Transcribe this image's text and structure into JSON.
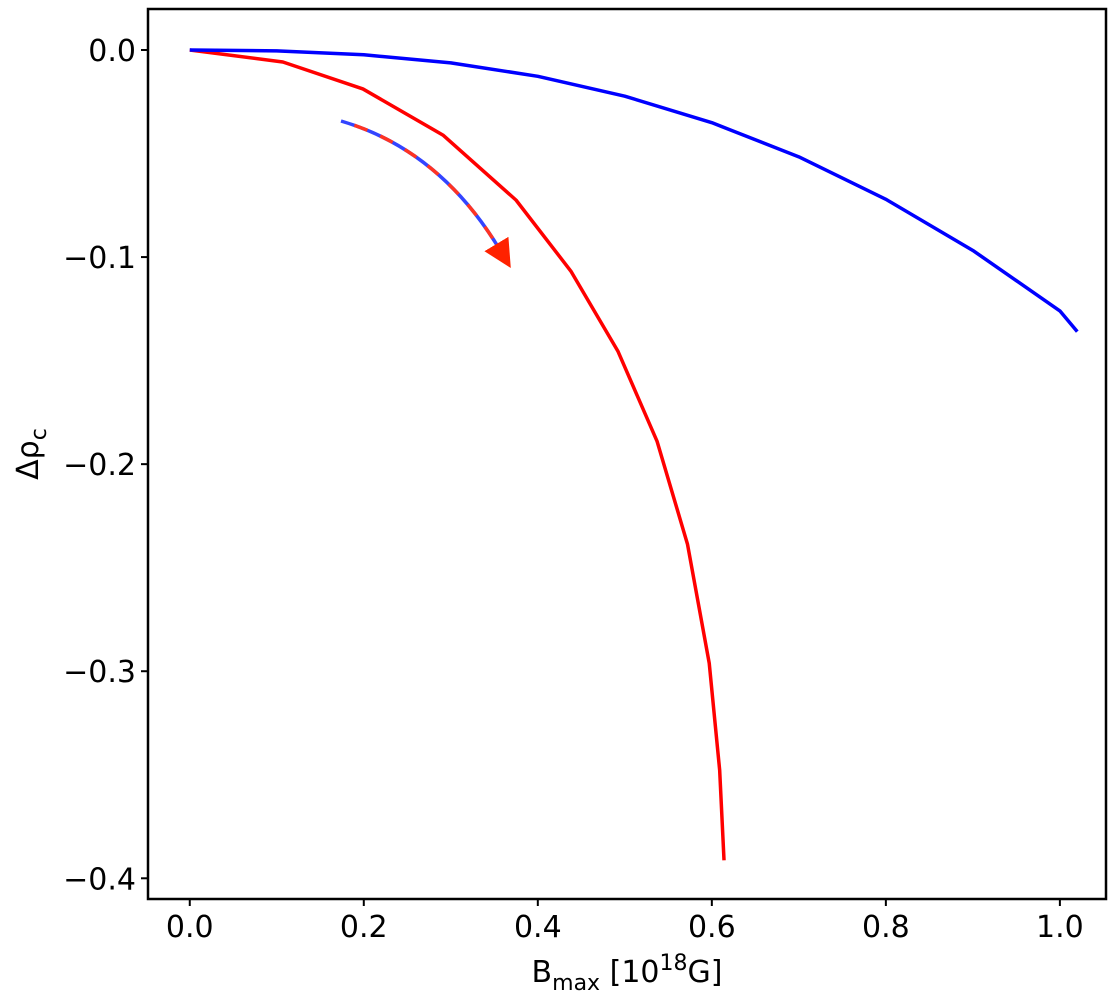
{
  "chart_data": {
    "type": "line",
    "xlabel": {
      "main": "B",
      "sub": "max",
      "mid": " [10",
      "sup": "18",
      "end": "G]"
    },
    "ylabel": {
      "main": "Δρ",
      "sub": "c"
    },
    "xlim": [
      -0.048,
      1.053
    ],
    "ylim": [
      -0.41,
      0.0198
    ],
    "xticks": [
      {
        "value": 0,
        "label": "0.0"
      },
      {
        "value": 0.2,
        "label": "0.2"
      },
      {
        "value": 0.4,
        "label": "0.4"
      },
      {
        "value": 0.6,
        "label": "0.6"
      },
      {
        "value": 0.8,
        "label": "0.8"
      },
      {
        "value": 1.0,
        "label": "1.0"
      }
    ],
    "yticks": [
      {
        "value": 0,
        "label": "0.0"
      },
      {
        "value": -0.1,
        "label": "−0.1"
      },
      {
        "value": -0.2,
        "label": "−0.2"
      },
      {
        "value": -0.3,
        "label": "−0.3"
      },
      {
        "value": -0.4,
        "label": "−0.4"
      }
    ],
    "grid": false,
    "series": [
      {
        "color": "#ff0000",
        "x": [
          0,
          0.107,
          0.199,
          0.291,
          0.375,
          0.438,
          0.492,
          0.537,
          0.572,
          0.597,
          0.609,
          0.614
        ],
        "values": [
          0,
          -0.0058,
          -0.0188,
          -0.0411,
          -0.0725,
          -0.1068,
          -0.1454,
          -0.1889,
          -0.2386,
          -0.2961,
          -0.3478,
          -0.3913
        ]
      },
      {
        "color": "#0000ff",
        "x": [
          0,
          0.1,
          0.2,
          0.3,
          0.4,
          0.5,
          0.6,
          0.7,
          0.8,
          0.9,
          1.0,
          1.02
        ],
        "values": [
          0,
          -0.0004,
          -0.0023,
          -0.0062,
          -0.0127,
          -0.0223,
          -0.0351,
          -0.0516,
          -0.0721,
          -0.0968,
          -0.126,
          -0.136
        ]
      }
    ]
  }
}
